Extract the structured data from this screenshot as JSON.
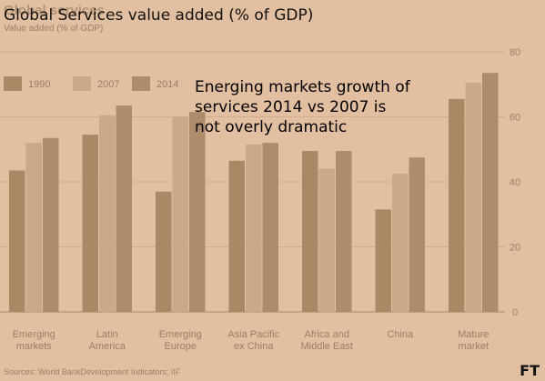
{
  "overlay": {
    "title": "Global Services value added (% of GDP)",
    "note": "Energing markets  growth of\nservices 2014 vs 2007  is\nnot overly dramatic"
  },
  "brand": {
    "logo": "FT"
  },
  "chart_data": {
    "type": "bar",
    "title": "Global services",
    "subtitle": "Value added (% of GDP)",
    "source": "Sources: World BankDevelopment Indicators; IIF",
    "categories": [
      "Emerging\nmarkets",
      "Latin\nAmerica",
      "Emerging\nEurope",
      "Asia Pacific\nex China",
      "Africa and\nMiddle East",
      "China",
      "Mature\nmarket"
    ],
    "series": [
      {
        "name": "1990",
        "values": [
          43.5,
          54.5,
          37,
          46.5,
          49.5,
          31.5,
          65.5
        ]
      },
      {
        "name": "2007",
        "values": [
          52,
          60.5,
          60,
          51.5,
          44,
          42.5,
          70.5
        ]
      },
      {
        "name": "2014",
        "values": [
          53.5,
          63.5,
          61.5,
          52,
          49.5,
          47.5,
          73.5
        ]
      }
    ],
    "ylim": [
      0,
      80
    ],
    "yticks": [
      0,
      20,
      40,
      60,
      80
    ],
    "y_axis_position": "right",
    "grid": true,
    "legend_position": "top-left",
    "colors": {
      "1990": "#a98866",
      "2007": "#c8a98a",
      "2014": "#ad8b6b"
    }
  }
}
